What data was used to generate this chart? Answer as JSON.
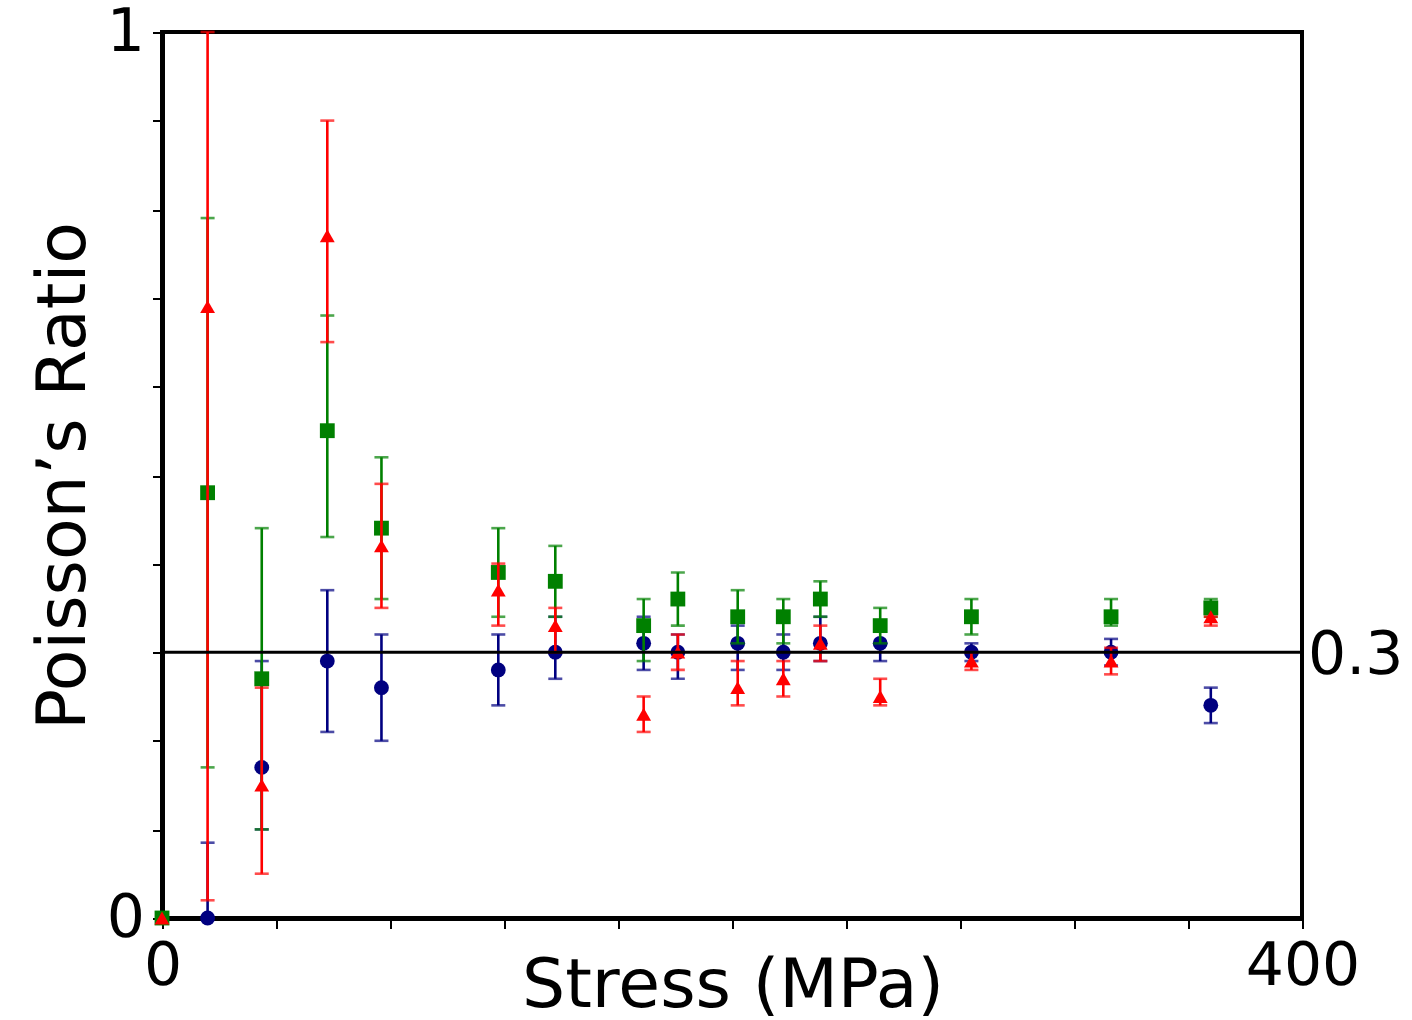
{
  "chart_data": {
    "type": "scatter",
    "xlabel": "Stress (MPa)",
    "ylabel": "Poisson’s Ratio",
    "xlim": [
      0,
      400
    ],
    "ylim": [
      0,
      1
    ],
    "xticks": [
      0,
      {
        "value": 40,
        "label": null
      },
      {
        "value": 80,
        "label": null
      },
      {
        "value": 120,
        "label": null
      },
      {
        "value": 160,
        "label": null
      },
      {
        "value": 200,
        "label": null
      },
      {
        "value": 240,
        "label": null
      },
      {
        "value": 280,
        "label": null
      },
      {
        "value": 320,
        "label": null
      },
      {
        "value": 360,
        "label": null
      },
      400
    ],
    "yticks": [
      0,
      {
        "value": 0.1,
        "label": null
      },
      {
        "value": 0.2,
        "label": null
      },
      {
        "value": 0.3,
        "label": null
      },
      {
        "value": 0.4,
        "label": null
      },
      {
        "value": 0.5,
        "label": null
      },
      {
        "value": 0.6,
        "label": null
      },
      {
        "value": 0.7,
        "label": null
      },
      {
        "value": 0.8,
        "label": null
      },
      {
        "value": 0.9,
        "label": null
      },
      1
    ],
    "grid": false,
    "ref_lines": [
      {
        "axis": "y",
        "value": 0.3,
        "label": "0.3",
        "color": "#000000",
        "line_style": "solid"
      }
    ],
    "series": [
      {
        "color": "#008000",
        "marker": "square",
        "x": [
          0,
          16,
          35,
          58,
          77,
          118,
          138,
          169,
          181,
          202,
          218,
          231,
          252,
          284,
          333,
          368
        ],
        "values": [
          0,
          0.48,
          0.27,
          0.55,
          0.44,
          0.39,
          0.38,
          0.33,
          0.36,
          0.34,
          0.34,
          0.36,
          0.33,
          0.34,
          0.34,
          0.35
        ],
        "errors": [
          null,
          [
            0.17,
            0.79
          ],
          [
            0.1,
            0.44
          ],
          [
            0.43,
            0.68
          ],
          [
            0.36,
            0.52
          ],
          [
            0.34,
            0.44
          ],
          [
            0.34,
            0.42
          ],
          [
            0.29,
            0.36
          ],
          [
            0.33,
            0.39
          ],
          [
            0.31,
            0.37
          ],
          [
            0.31,
            0.36
          ],
          [
            0.34,
            0.38
          ],
          [
            0.31,
            0.35
          ],
          [
            0.32,
            0.36
          ],
          [
            0.33,
            0.36
          ],
          [
            0.34,
            0.36
          ]
        ]
      },
      {
        "color": "#ff0000",
        "marker": "triangle",
        "x": [
          0,
          16,
          35,
          58,
          77,
          118,
          138,
          169,
          181,
          202,
          218,
          231,
          252,
          284,
          333,
          368
        ],
        "values": [
          0,
          0.69,
          0.15,
          0.77,
          0.42,
          0.37,
          0.33,
          0.23,
          0.3,
          0.26,
          0.27,
          0.31,
          0.25,
          0.29,
          0.29,
          0.34
        ],
        "errors": [
          null,
          [
            0.02,
            1.0
          ],
          [
            0.05,
            0.26
          ],
          [
            0.65,
            0.9
          ],
          [
            0.35,
            0.49
          ],
          [
            0.33,
            0.4
          ],
          [
            0.3,
            0.35
          ],
          [
            0.21,
            0.25
          ],
          [
            0.28,
            0.32
          ],
          [
            0.24,
            0.29
          ],
          [
            0.25,
            0.29
          ],
          [
            0.29,
            0.33
          ],
          [
            0.24,
            0.27
          ],
          [
            0.28,
            0.3
          ],
          [
            0.275,
            0.305
          ],
          [
            0.33,
            0.34
          ]
        ]
      },
      {
        "color": "#000080",
        "marker": "circle",
        "x": [
          16,
          35,
          58,
          77,
          118,
          138,
          169,
          181,
          202,
          218,
          231,
          252,
          284,
          333,
          368
        ],
        "values": [
          0,
          0.17,
          0.29,
          0.26,
          0.28,
          0.3,
          0.31,
          0.3,
          0.31,
          0.3,
          0.31,
          0.31,
          0.3,
          0.3,
          0.24
        ],
        "errors": [
          [
            0,
            0.085
          ],
          [
            0.1,
            0.29
          ],
          [
            0.21,
            0.37
          ],
          [
            0.2,
            0.32
          ],
          [
            0.24,
            0.32
          ],
          [
            0.27,
            0.34
          ],
          [
            0.28,
            0.34
          ],
          [
            0.27,
            0.32
          ],
          [
            0.28,
            0.33
          ],
          [
            0.28,
            0.32
          ],
          [
            0.29,
            0.34
          ],
          [
            0.29,
            0.31
          ],
          [
            0.29,
            0.31
          ],
          [
            0.285,
            0.315
          ],
          [
            0.22,
            0.26
          ]
        ]
      }
    ]
  }
}
